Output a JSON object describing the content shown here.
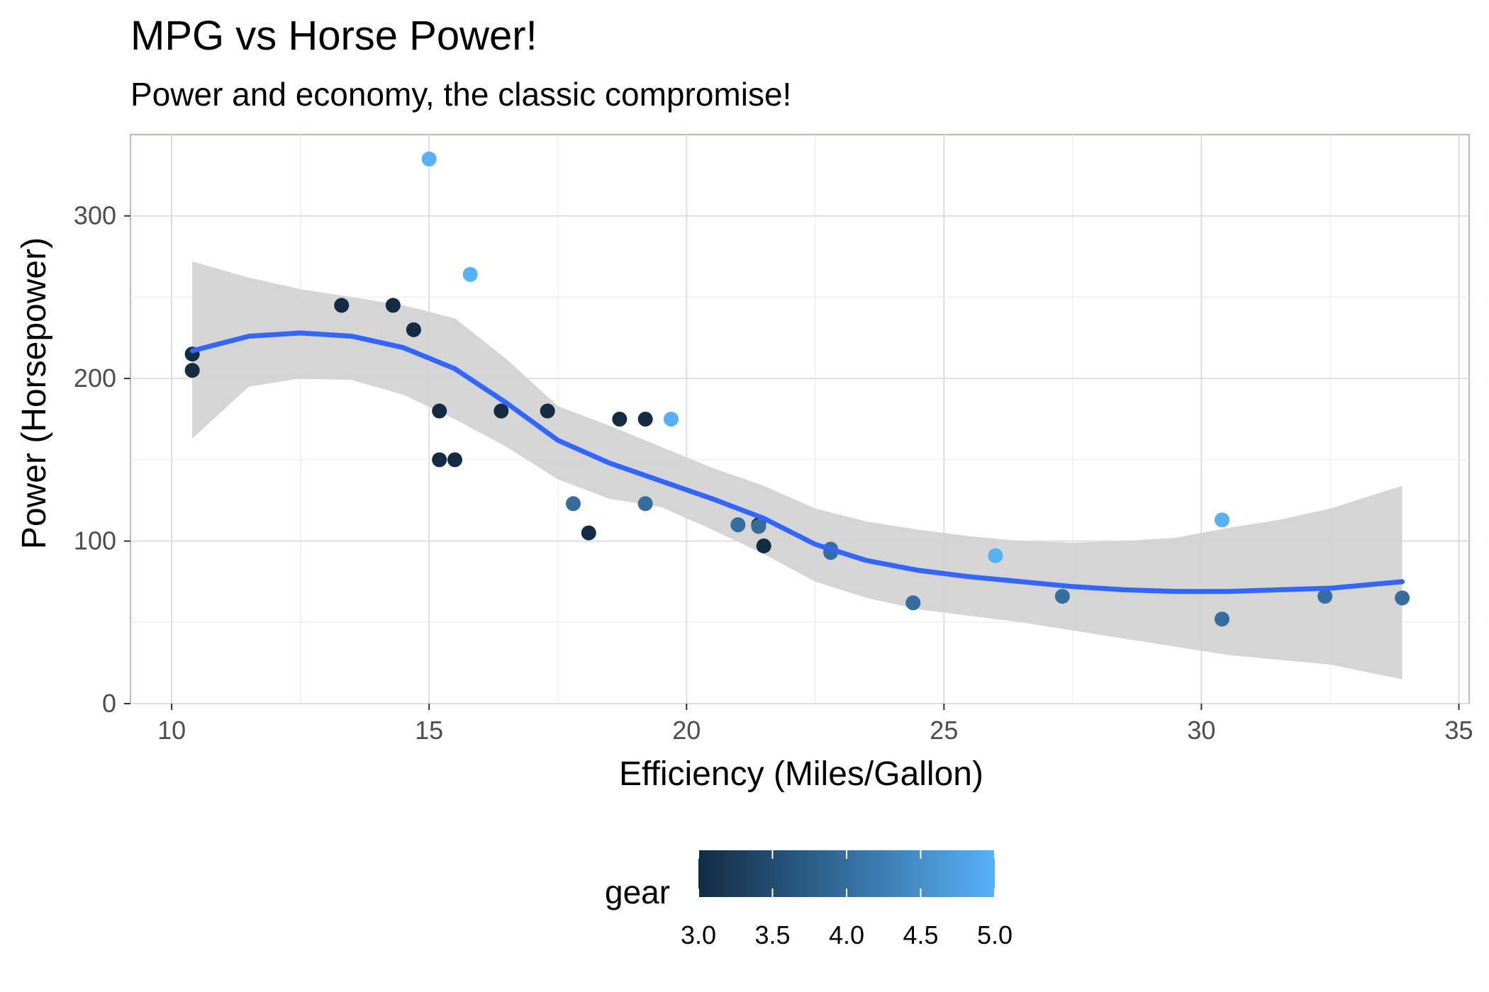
{
  "chart_data": {
    "type": "scatter",
    "title": "MPG vs Horse Power!",
    "subtitle": "Power and economy, the classic compromise!",
    "xlabel": "Efficiency (Miles/Gallon)",
    "ylabel": "Power (Horsepower)",
    "xlim": [
      9.2,
      35.2
    ],
    "ylim": [
      0,
      350
    ],
    "x_ticks": [
      10,
      15,
      20,
      25,
      30,
      35
    ],
    "y_ticks": [
      0,
      100,
      200,
      300
    ],
    "grid": true,
    "legend": {
      "title": "gear",
      "position": "bottom",
      "kind": "colorbar",
      "range": [
        3.0,
        5.0
      ],
      "ticks": [
        "3.0",
        "3.5",
        "4.0",
        "4.5",
        "5.0"
      ],
      "low_color": "#132B43",
      "high_color": "#56B1F7"
    },
    "points": [
      {
        "x": 21.0,
        "y": 110,
        "gear": 4
      },
      {
        "x": 21.0,
        "y": 110,
        "gear": 4
      },
      {
        "x": 22.8,
        "y": 93,
        "gear": 4
      },
      {
        "x": 21.4,
        "y": 110,
        "gear": 3
      },
      {
        "x": 18.7,
        "y": 175,
        "gear": 3
      },
      {
        "x": 18.1,
        "y": 105,
        "gear": 3
      },
      {
        "x": 14.3,
        "y": 245,
        "gear": 3
      },
      {
        "x": 24.4,
        "y": 62,
        "gear": 4
      },
      {
        "x": 22.8,
        "y": 95,
        "gear": 4
      },
      {
        "x": 19.2,
        "y": 123,
        "gear": 4
      },
      {
        "x": 17.8,
        "y": 123,
        "gear": 4
      },
      {
        "x": 16.4,
        "y": 180,
        "gear": 3
      },
      {
        "x": 17.3,
        "y": 180,
        "gear": 3
      },
      {
        "x": 15.2,
        "y": 180,
        "gear": 3
      },
      {
        "x": 10.4,
        "y": 205,
        "gear": 3
      },
      {
        "x": 10.4,
        "y": 215,
        "gear": 3
      },
      {
        "x": 14.7,
        "y": 230,
        "gear": 3
      },
      {
        "x": 32.4,
        "y": 66,
        "gear": 4
      },
      {
        "x": 30.4,
        "y": 52,
        "gear": 4
      },
      {
        "x": 33.9,
        "y": 65,
        "gear": 4
      },
      {
        "x": 21.5,
        "y": 97,
        "gear": 3
      },
      {
        "x": 15.5,
        "y": 150,
        "gear": 3
      },
      {
        "x": 15.2,
        "y": 150,
        "gear": 3
      },
      {
        "x": 13.3,
        "y": 245,
        "gear": 3
      },
      {
        "x": 19.2,
        "y": 175,
        "gear": 3
      },
      {
        "x": 27.3,
        "y": 66,
        "gear": 4
      },
      {
        "x": 26.0,
        "y": 91,
        "gear": 5
      },
      {
        "x": 30.4,
        "y": 113,
        "gear": 5
      },
      {
        "x": 15.8,
        "y": 264,
        "gear": 5
      },
      {
        "x": 19.7,
        "y": 175,
        "gear": 5
      },
      {
        "x": 15.0,
        "y": 335,
        "gear": 5
      },
      {
        "x": 21.4,
        "y": 109,
        "gear": 4
      }
    ],
    "smooth": {
      "color": "#3366FF",
      "band_color": "#D3D3D3",
      "x": [
        10.4,
        11.5,
        12.5,
        13.5,
        14.5,
        15.5,
        16.5,
        17.5,
        18.5,
        19.5,
        20.5,
        21.5,
        22.5,
        23.5,
        24.5,
        25.5,
        26.5,
        27.5,
        28.5,
        29.5,
        30.5,
        31.5,
        32.5,
        33.9
      ],
      "y": [
        217,
        226,
        228,
        226,
        219,
        206,
        185,
        162,
        148,
        137,
        126,
        114,
        98,
        88,
        82,
        78,
        75,
        72,
        70,
        69,
        69,
        70,
        71,
        75
      ],
      "lower": [
        163,
        195,
        200,
        199,
        190,
        175,
        158,
        138,
        126,
        121,
        107,
        92,
        75,
        65,
        58,
        54,
        50,
        45,
        40,
        35,
        30,
        27,
        24,
        15
      ],
      "upper": [
        272,
        262,
        255,
        250,
        245,
        237,
        212,
        183,
        171,
        158,
        145,
        134,
        120,
        112,
        107,
        103,
        100,
        99,
        100,
        102,
        108,
        113,
        120,
        134
      ]
    }
  }
}
